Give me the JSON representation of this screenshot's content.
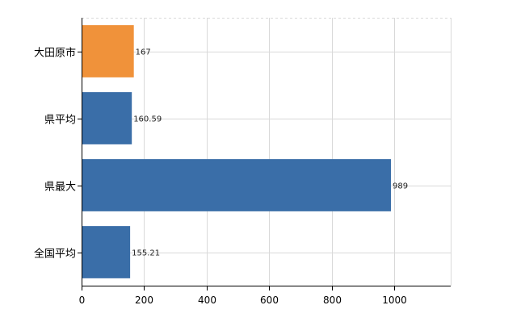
{
  "chart_data": {
    "type": "bar",
    "orientation": "horizontal",
    "categories": [
      "大田原市",
      "県平均",
      "県最大",
      "全国平均"
    ],
    "values": [
      167,
      160.59,
      989,
      155.21
    ],
    "value_labels": [
      "167",
      "160.59",
      "989",
      "155.21"
    ],
    "bar_colors": [
      "#f0923a",
      "#3a6ea8",
      "#3a6ea8",
      "#3a6ea8"
    ],
    "xlim": [
      0,
      1180
    ],
    "xticks": [
      0,
      200,
      400,
      600,
      800,
      1000
    ],
    "xtick_labels": [
      "0",
      "200",
      "400",
      "600",
      "800",
      "1000"
    ],
    "grid": true,
    "title": "",
    "xlabel": "",
    "ylabel": ""
  }
}
